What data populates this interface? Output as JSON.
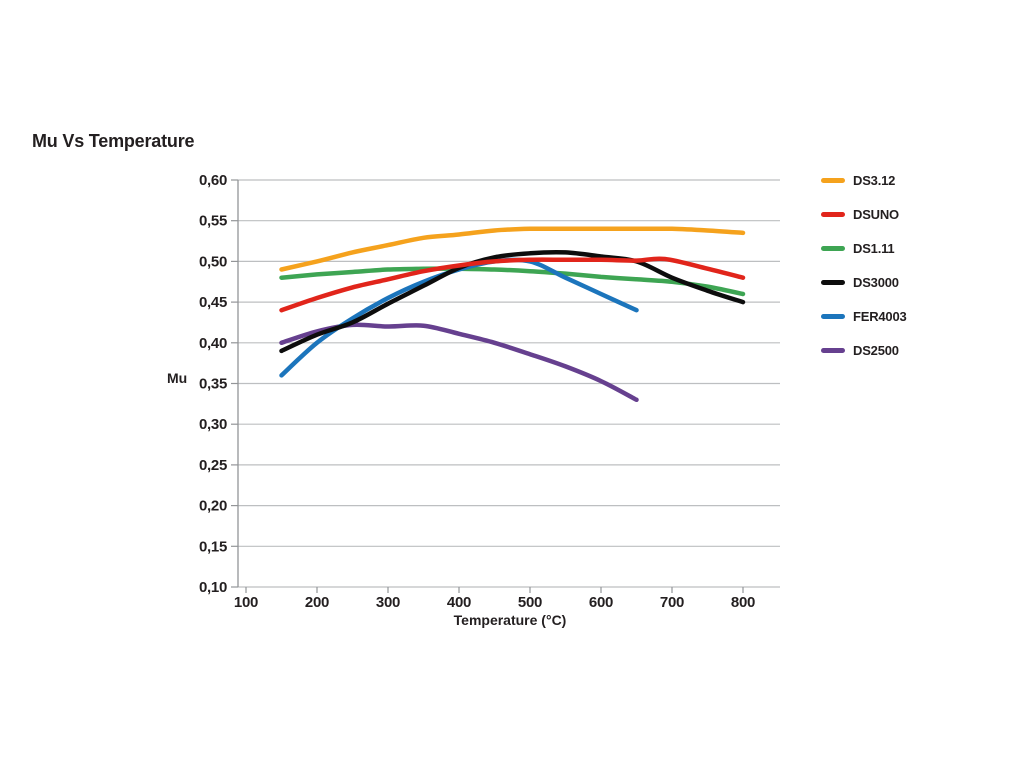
{
  "chart_data": {
    "type": "line",
    "title": "Mu Vs Temperature",
    "xlabel": "Temperature (°C)",
    "ylabel": "Mu",
    "x_ticks": [
      100,
      200,
      300,
      400,
      500,
      600,
      700,
      800
    ],
    "y_tick_labels": [
      "0,60",
      "0,55",
      "0,50",
      "0,45",
      "0,40",
      "0,35",
      "0,30",
      "0,25",
      "0,20",
      "0,15",
      "0,10"
    ],
    "ylim": [
      0.1,
      0.6
    ],
    "xlim": [
      100,
      848
    ],
    "decimal_separator": ",",
    "grid": "horizontal-only",
    "legend_position": "right",
    "text_color": "#231F20",
    "grid_color": "#BDBFC1",
    "axis_color": "#939598",
    "background_color": "#FFFFFF",
    "series": [
      {
        "name": "DS3.12",
        "color": "#F5A21D",
        "points": [
          [
            150,
            0.49
          ],
          [
            200,
            0.5
          ],
          [
            250,
            0.511
          ],
          [
            300,
            0.52
          ],
          [
            350,
            0.529
          ],
          [
            400,
            0.533
          ],
          [
            450,
            0.538
          ],
          [
            500,
            0.54
          ],
          [
            550,
            0.54
          ],
          [
            600,
            0.54
          ],
          [
            650,
            0.54
          ],
          [
            700,
            0.54
          ],
          [
            750,
            0.538
          ],
          [
            800,
            0.535
          ]
        ]
      },
      {
        "name": "DSUNO",
        "color": "#E1251B",
        "points": [
          [
            150,
            0.44
          ],
          [
            200,
            0.455
          ],
          [
            250,
            0.468
          ],
          [
            300,
            0.478
          ],
          [
            350,
            0.488
          ],
          [
            400,
            0.495
          ],
          [
            450,
            0.5
          ],
          [
            500,
            0.502
          ],
          [
            550,
            0.502
          ],
          [
            600,
            0.502
          ],
          [
            650,
            0.501
          ],
          [
            690,
            0.503
          ],
          [
            750,
            0.491
          ],
          [
            800,
            0.48
          ]
        ]
      },
      {
        "name": "DS1.11",
        "color": "#3EA553",
        "points": [
          [
            150,
            0.48
          ],
          [
            200,
            0.484
          ],
          [
            250,
            0.487
          ],
          [
            300,
            0.49
          ],
          [
            350,
            0.491
          ],
          [
            400,
            0.491
          ],
          [
            450,
            0.49
          ],
          [
            500,
            0.488
          ],
          [
            550,
            0.485
          ],
          [
            600,
            0.481
          ],
          [
            650,
            0.478
          ],
          [
            700,
            0.475
          ],
          [
            750,
            0.469
          ],
          [
            800,
            0.46
          ]
        ]
      },
      {
        "name": "DS3000",
        "color": "#0D0D0D",
        "points": [
          [
            150,
            0.39
          ],
          [
            200,
            0.41
          ],
          [
            250,
            0.425
          ],
          [
            300,
            0.448
          ],
          [
            350,
            0.47
          ],
          [
            400,
            0.492
          ],
          [
            450,
            0.505
          ],
          [
            500,
            0.51
          ],
          [
            550,
            0.511
          ],
          [
            600,
            0.506
          ],
          [
            650,
            0.5
          ],
          [
            700,
            0.48
          ],
          [
            750,
            0.464
          ],
          [
            800,
            0.45
          ]
        ]
      },
      {
        "name": "FER4003",
        "color": "#1C75BC",
        "points": [
          [
            150,
            0.36
          ],
          [
            200,
            0.4
          ],
          [
            250,
            0.43
          ],
          [
            300,
            0.455
          ],
          [
            350,
            0.475
          ],
          [
            400,
            0.49
          ],
          [
            450,
            0.5
          ],
          [
            500,
            0.5
          ],
          [
            550,
            0.48
          ],
          [
            600,
            0.46
          ],
          [
            650,
            0.44
          ]
        ]
      },
      {
        "name": "DS2500",
        "color": "#66408F",
        "points": [
          [
            150,
            0.4
          ],
          [
            200,
            0.414
          ],
          [
            250,
            0.422
          ],
          [
            300,
            0.42
          ],
          [
            350,
            0.421
          ],
          [
            400,
            0.411
          ],
          [
            450,
            0.4
          ],
          [
            500,
            0.386
          ],
          [
            550,
            0.371
          ],
          [
            600,
            0.353
          ],
          [
            650,
            0.33
          ]
        ]
      }
    ]
  }
}
